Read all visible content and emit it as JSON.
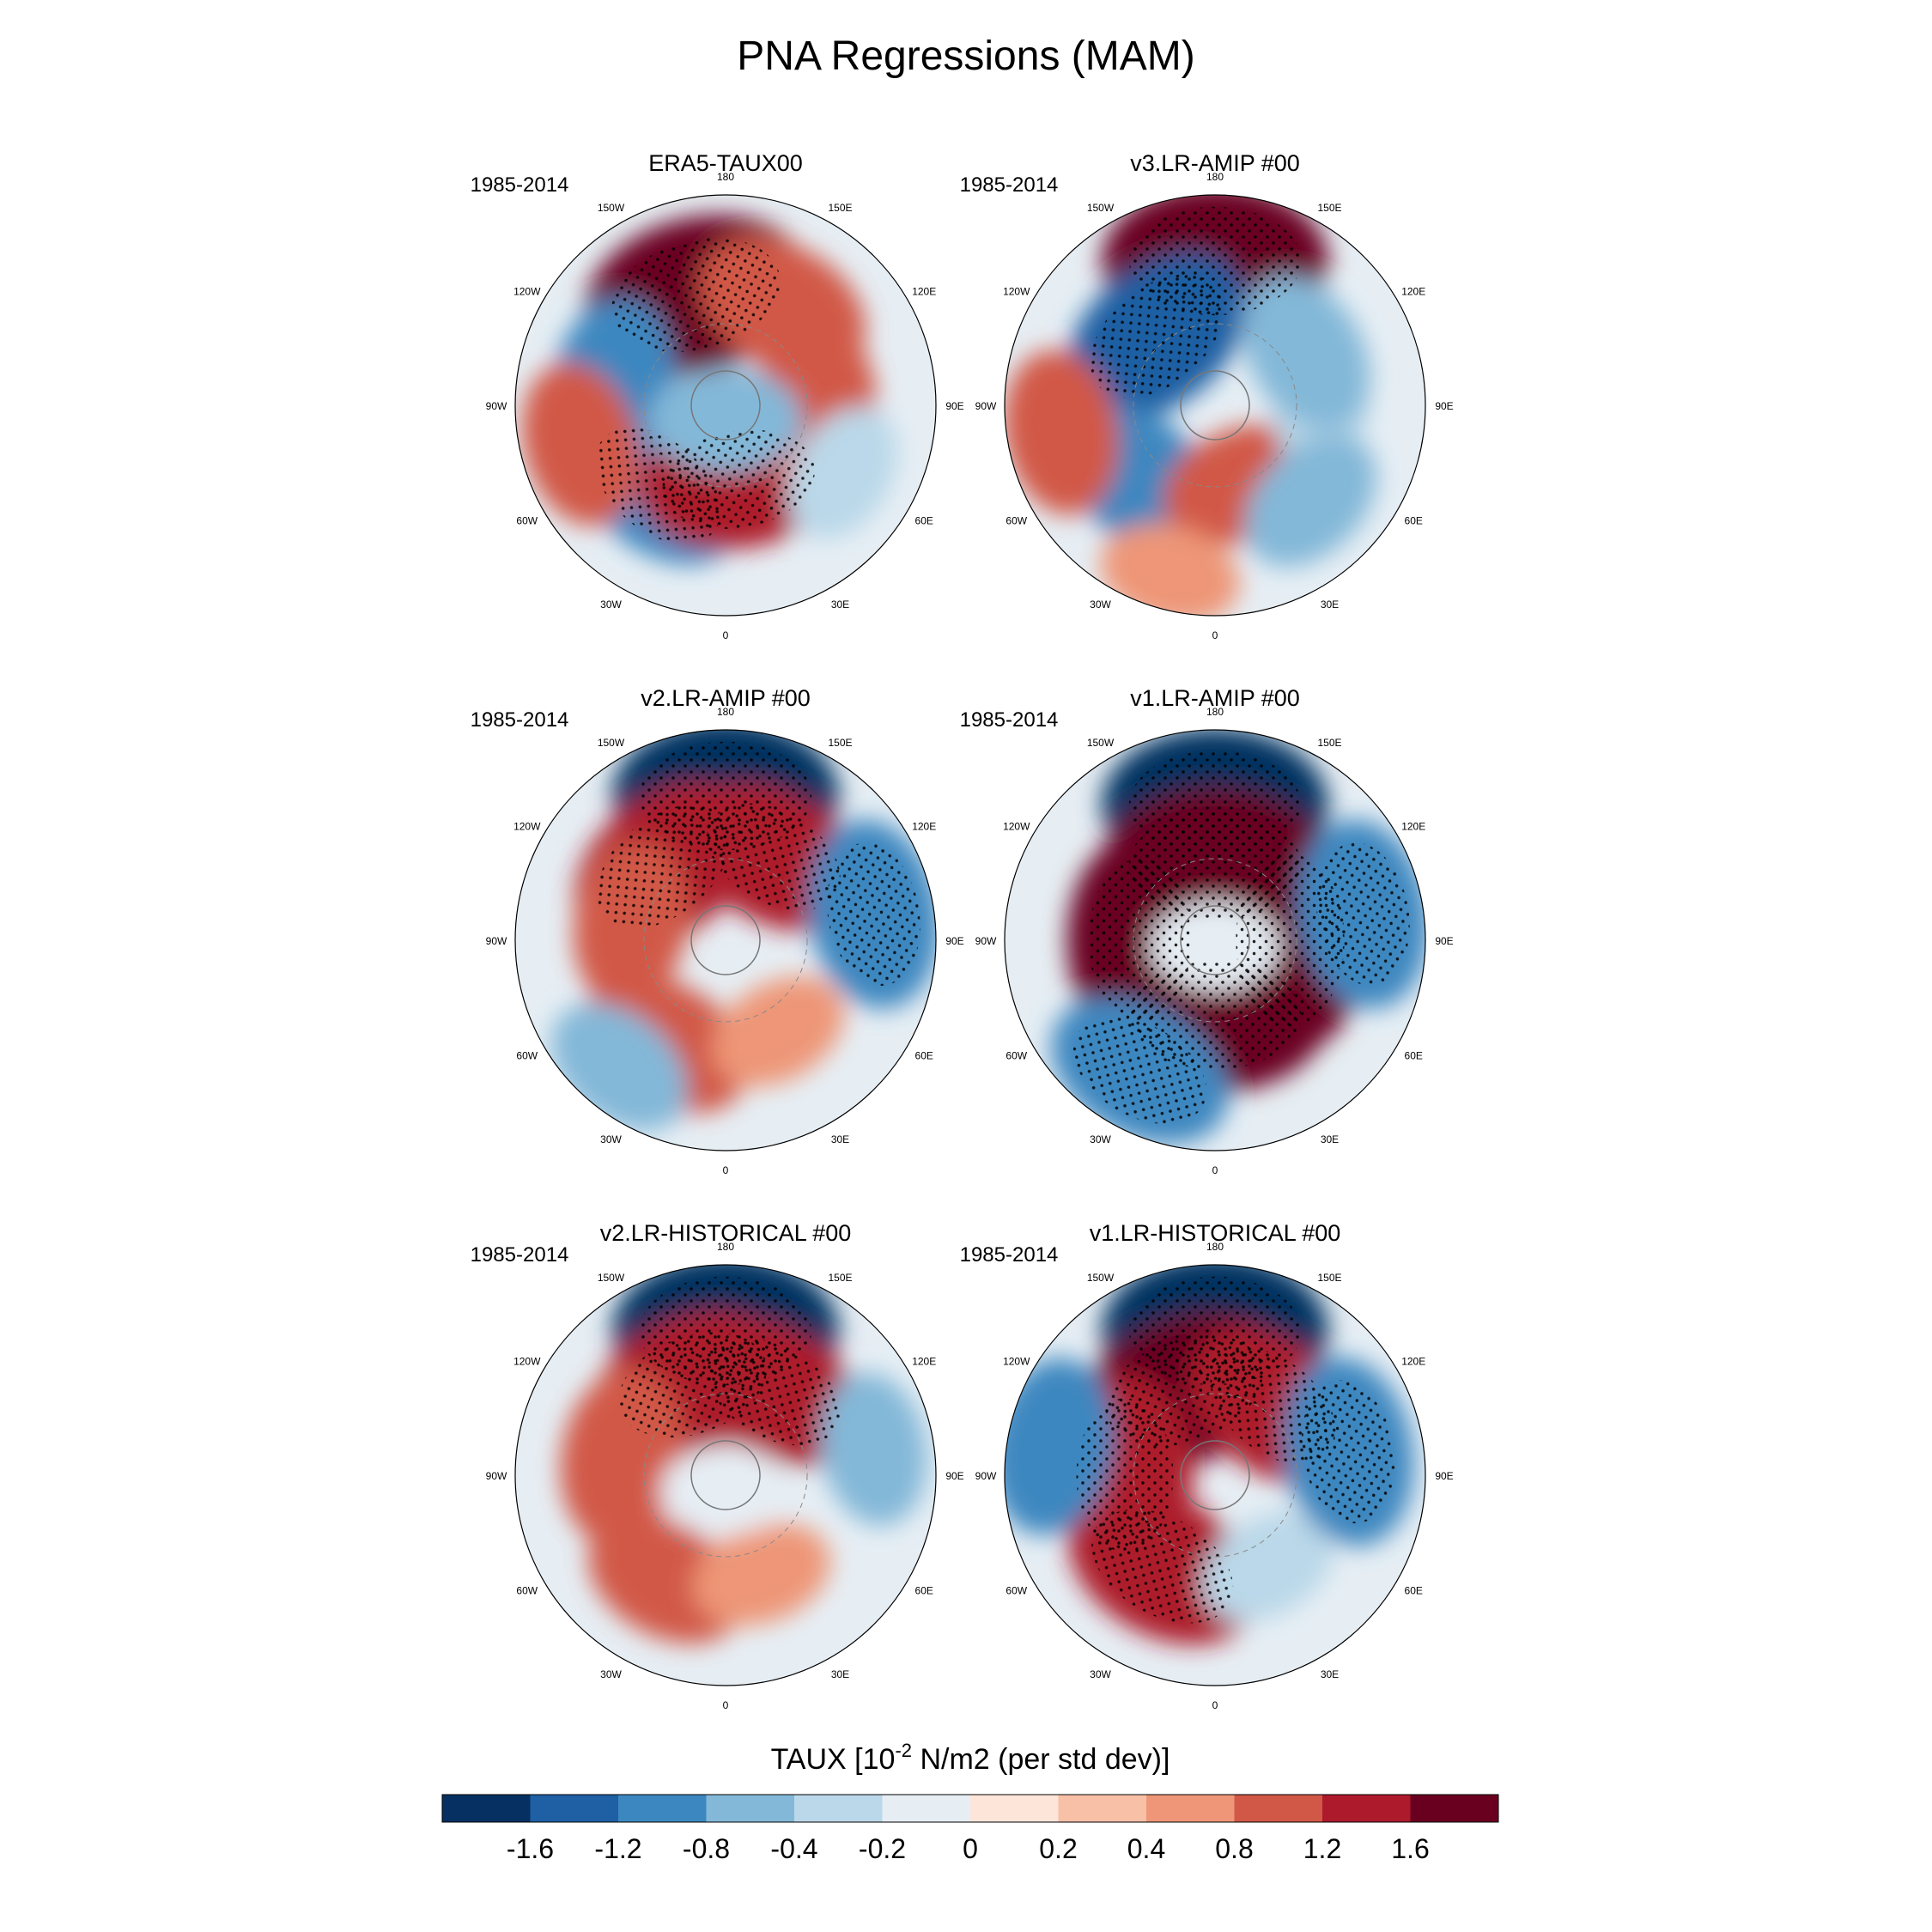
{
  "figure": {
    "title": "PNA Regressions (MAM)"
  },
  "chart_data": {
    "type": "heatmap",
    "projection": "north-polar-stereographic",
    "title": "PNA Regressions (MAM)",
    "stippling": "dots mark statistically significant regions",
    "panels": [
      {
        "name": "ERA5-TAUX00",
        "period": "1985-2014",
        "regions": [
          {
            "lon": -165,
            "lat": 52,
            "value": 1.8
          },
          {
            "lon": 150,
            "lat": 52,
            "value": 1.0
          },
          {
            "lon": -100,
            "lat": 52,
            "value": -1.0
          },
          {
            "lon": -40,
            "lat": 55,
            "value": -1.2
          },
          {
            "lon": 10,
            "lat": 65,
            "value": 1.4
          },
          {
            "lon": -75,
            "lat": 40,
            "value": 0.8
          },
          {
            "lon": 90,
            "lat": 60,
            "value": 1.0
          },
          {
            "lon": 60,
            "lat": 45,
            "value": -0.4
          },
          {
            "lon": 0,
            "lat": 85,
            "value": -0.6
          }
        ]
      },
      {
        "name": "v3.LR-AMIP  #00",
        "period": "1985-2014",
        "regions": [
          {
            "lon": 180,
            "lat": 42,
            "value": 1.8
          },
          {
            "lon": -140,
            "lat": 60,
            "value": -1.4
          },
          {
            "lon": -45,
            "lat": 55,
            "value": -1.0
          },
          {
            "lon": -80,
            "lat": 38,
            "value": 0.8
          },
          {
            "lon": 20,
            "lat": 62,
            "value": 0.8
          },
          {
            "lon": 90,
            "lat": 55,
            "value": -0.4
          },
          {
            "lon": 120,
            "lat": 55,
            "value": -0.8
          },
          {
            "lon": 45,
            "lat": 45,
            "value": -0.6
          },
          {
            "lon": -15,
            "lat": 32,
            "value": 0.4
          }
        ]
      },
      {
        "name": "v2.LR-AMIP  #00",
        "period": "1985-2014",
        "regions": [
          {
            "lon": 180,
            "lat": 42,
            "value": -1.8
          },
          {
            "lon": -140,
            "lat": 58,
            "value": 1.4
          },
          {
            "lon": 150,
            "lat": 58,
            "value": 1.2
          },
          {
            "lon": -100,
            "lat": 58,
            "value": 0.8
          },
          {
            "lon": -30,
            "lat": 50,
            "value": 1.0
          },
          {
            "lon": -40,
            "lat": 35,
            "value": -0.6
          },
          {
            "lon": 100,
            "lat": 40,
            "value": -1.2
          },
          {
            "lon": 30,
            "lat": 55,
            "value": 0.4
          }
        ]
      },
      {
        "name": "v1.LR-AMIP  #00",
        "period": "1985-2014",
        "regions": [
          {
            "lon": 180,
            "lat": 45,
            "value": -1.8
          },
          {
            "lon": 180,
            "lat": 65,
            "value": 1.8
          },
          {
            "lon": 90,
            "lat": 65,
            "value": 1.8
          },
          {
            "lon": 0,
            "lat": 65,
            "value": 1.8
          },
          {
            "lon": -90,
            "lat": 65,
            "value": 1.6
          },
          {
            "lon": -30,
            "lat": 40,
            "value": -1.2
          },
          {
            "lon": 100,
            "lat": 40,
            "value": -1.2
          },
          {
            "lon": 0,
            "lat": 88,
            "value": -0.2
          }
        ]
      },
      {
        "name": "v2.LR-HISTORICAL  #00",
        "period": "1985-2014",
        "regions": [
          {
            "lon": 180,
            "lat": 42,
            "value": -1.8
          },
          {
            "lon": -160,
            "lat": 58,
            "value": 1.4
          },
          {
            "lon": 150,
            "lat": 58,
            "value": 1.2
          },
          {
            "lon": -100,
            "lat": 55,
            "value": 1.0
          },
          {
            "lon": -30,
            "lat": 50,
            "value": 0.8
          },
          {
            "lon": 100,
            "lat": 40,
            "value": -0.6
          },
          {
            "lon": 20,
            "lat": 55,
            "value": 0.4
          },
          {
            "lon": 0,
            "lat": 85,
            "value": -0.2
          }
        ]
      },
      {
        "name": "v1.LR-HISTORICAL  #00",
        "period": "1985-2014",
        "regions": [
          {
            "lon": 180,
            "lat": 42,
            "value": -1.8
          },
          {
            "lon": -160,
            "lat": 60,
            "value": 1.6
          },
          {
            "lon": 140,
            "lat": 60,
            "value": 1.2
          },
          {
            "lon": -90,
            "lat": 60,
            "value": 1.4
          },
          {
            "lon": -30,
            "lat": 55,
            "value": 1.4
          },
          {
            "lon": 30,
            "lat": 55,
            "value": -0.4
          },
          {
            "lon": 100,
            "lat": 45,
            "value": -1.2
          },
          {
            "lon": -100,
            "lat": 35,
            "value": -1.0
          }
        ]
      }
    ],
    "longitude_labels": [
      "180",
      "150E",
      "120E",
      "90E",
      "60E",
      "30E",
      "0",
      "30W",
      "60W",
      "90W",
      "120W",
      "150W"
    ],
    "colorbar": {
      "title_prefix": "TAUX [10",
      "title_exponent": "-2",
      "title_suffix": " N/m2 (per std dev)]",
      "levels": [
        "-1.6",
        "-1.2",
        "-0.8",
        "-0.4",
        "-0.2",
        "0",
        "0.2",
        "0.4",
        "0.8",
        "1.2",
        "1.6"
      ],
      "level_values": [
        -1.6,
        -1.2,
        -0.8,
        -0.4,
        -0.2,
        0,
        0.2,
        0.4,
        0.8,
        1.2,
        1.6
      ],
      "colors": [
        "#053061",
        "#1f5fa3",
        "#3d87c0",
        "#83b8d8",
        "#bad8e9",
        "#e6eef4",
        "#fde5d9",
        "#f8c0a7",
        "#ee9677",
        "#d15847",
        "#ad1a2b",
        "#6a0020"
      ]
    }
  }
}
